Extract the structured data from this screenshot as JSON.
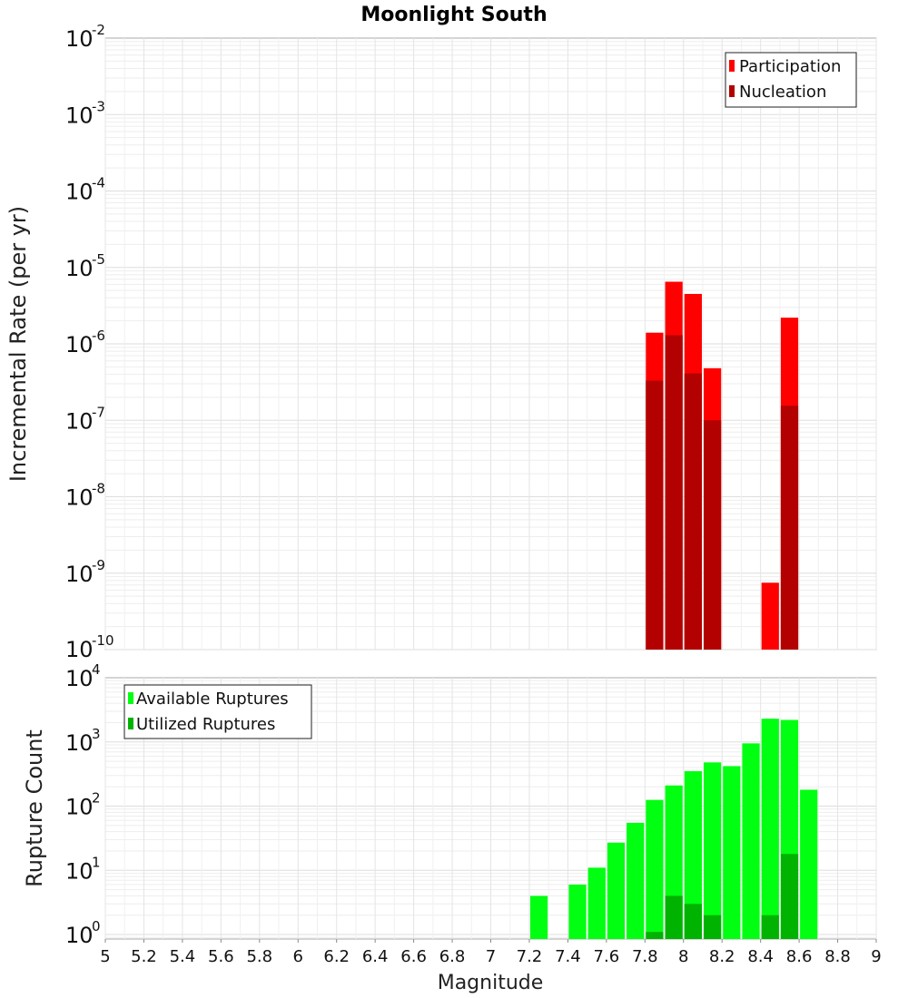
{
  "chart_data": [
    {
      "type": "bar",
      "title": "Moonlight South",
      "ylabel": "Incremental Rate (per yr)",
      "xlabel": "",
      "xlim": [
        5,
        9
      ],
      "ylim_log10": [
        -10,
        -2
      ],
      "yscale": "log",
      "grid": true,
      "legend_position": "top-right",
      "bar_width": 0.1,
      "x": [
        7.85,
        7.95,
        8.05,
        8.15,
        8.45,
        8.55
      ],
      "series": [
        {
          "name": "Participation",
          "color": "#ff0000",
          "values": [
            1.4e-06,
            6.5e-06,
            4.5e-06,
            4.8e-07,
            7.5e-10,
            2.2e-06
          ]
        },
        {
          "name": "Nucleation",
          "color": "#b30000",
          "values": [
            3.3e-07,
            1.3e-06,
            4.1e-07,
            1e-07,
            null,
            1.55e-07
          ]
        }
      ],
      "yticks": [
        {
          "base": "10",
          "exp": "-2"
        },
        {
          "base": "10",
          "exp": "-3"
        },
        {
          "base": "10",
          "exp": "-4"
        },
        {
          "base": "10",
          "exp": "-5"
        },
        {
          "base": "10",
          "exp": "-6"
        },
        {
          "base": "10",
          "exp": "-7"
        },
        {
          "base": "10",
          "exp": "-8"
        },
        {
          "base": "10",
          "exp": "-9"
        },
        {
          "base": "10",
          "exp": "-10"
        }
      ]
    },
    {
      "type": "bar",
      "title": "",
      "ylabel": "Rupture Count",
      "xlabel": "Magnitude",
      "xlim": [
        5,
        9
      ],
      "ylim_log10": [
        -0.07,
        4
      ],
      "yscale": "log",
      "grid": true,
      "legend_position": "top-left",
      "bar_width": 0.1,
      "x": [
        7.25,
        7.35,
        7.45,
        7.55,
        7.65,
        7.75,
        7.85,
        7.95,
        8.05,
        8.15,
        8.25,
        8.35,
        8.45,
        8.55,
        8.65
      ],
      "series": [
        {
          "name": "Available Ruptures",
          "color": "#00ff11",
          "values": [
            4,
            null,
            6,
            11,
            27,
            55,
            125,
            210,
            350,
            480,
            420,
            950,
            2300,
            2200,
            180
          ]
        },
        {
          "name": "Utilized Ruptures",
          "color": "#00b300",
          "values": [
            null,
            null,
            null,
            null,
            null,
            null,
            1.1,
            4,
            3,
            2,
            null,
            null,
            2,
            18,
            null
          ]
        }
      ],
      "yticks": [
        {
          "base": "10",
          "exp": "4"
        },
        {
          "base": "10",
          "exp": "3"
        },
        {
          "base": "10",
          "exp": "2"
        },
        {
          "base": "10",
          "exp": "1"
        },
        {
          "base": "10",
          "exp": "0"
        }
      ],
      "xticks": [
        "5",
        "5.2",
        "5.4",
        "5.6",
        "5.8",
        "6",
        "6.2",
        "6.4",
        "6.6",
        "6.8",
        "7",
        "7.2",
        "7.4",
        "7.6",
        "7.8",
        "8",
        "8.2",
        "8.4",
        "8.6",
        "8.8",
        "9"
      ]
    }
  ]
}
